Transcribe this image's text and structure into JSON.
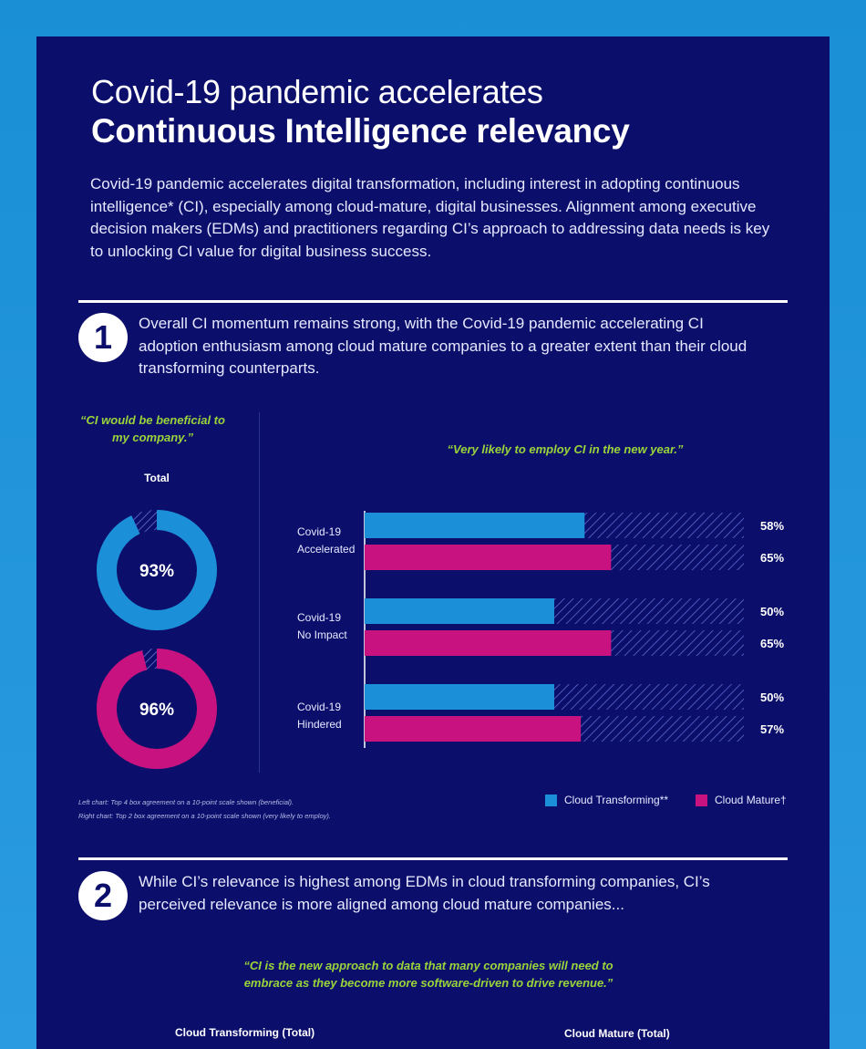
{
  "header": {
    "title_line1": "Covid-19 pandemic accelerates",
    "title_line2": "Continuous Intelligence relevancy",
    "intro": "Covid-19 pandemic accelerates digital transformation, including interest in adopting continuous intelligence* (CI), especially among cloud-mature, digital businesses.  Alignment among executive decision makers (EDMs) and practitioners regarding CI’s approach to addressing data needs is key to unlocking CI value for digital business success."
  },
  "section1": {
    "number": "1",
    "text": "Overall CI momentum remains strong, with the Covid-19 pandemic accelerating CI adoption enthusiasm among cloud mature companies to a greater extent than their cloud transforming counterparts.",
    "left_quote": "“CI would be beneficial to my company.”",
    "left_subtitle": "Total",
    "right_quote": "“Very likely to employ CI in the new year.”",
    "footnote_line1": "Left chart: Top 4 box agreement on a 10-point scale shown (beneficial).",
    "footnote_line2": "Right chart: Top 2 box agreement on a 10-point scale shown (very likely to employ).",
    "legend": {
      "cloud_transforming": "Cloud Transforming**",
      "cloud_mature": "Cloud Mature†"
    }
  },
  "section2": {
    "number": "2",
    "text": "While CI’s relevance is highest among EDMs in cloud transforming companies, CI’s perceived relevance is more aligned among cloud mature companies...",
    "quote": "“CI is the new approach to data that many companies will need to embrace as they become more software-driven to drive revenue.”",
    "col_left": "Cloud Transforming (Total)",
    "col_right": "Cloud Mature (Total)"
  },
  "colors": {
    "background_card": "#0b0f6b",
    "cloud_transforming": "#1b8fd8",
    "cloud_mature": "#c8127f",
    "quote_green": "#9ad43a"
  },
  "chart_data": [
    {
      "type": "pie",
      "title": "“CI would be beneficial to my company.”",
      "subtitle": "Total",
      "series": [
        {
          "name": "Cloud Transforming**",
          "value": 93,
          "label": "93%"
        },
        {
          "name": "Cloud Mature†",
          "value": 96,
          "label": "96%"
        }
      ]
    },
    {
      "type": "bar",
      "orientation": "horizontal",
      "title": "“Very likely to employ CI in the new year.”",
      "categories": [
        "Covid-19 Accelerated",
        "Covid-19 No Impact",
        "Covid-19 Hindered"
      ],
      "category_lines": [
        [
          "Covid-19",
          "Accelerated"
        ],
        [
          "Covid-19",
          "No Impact"
        ],
        [
          "Covid-19",
          "Hindered"
        ]
      ],
      "series": [
        {
          "name": "Cloud Transforming**",
          "values": [
            58,
            50,
            50
          ],
          "labels": [
            "58%",
            "50%",
            "50%"
          ]
        },
        {
          "name": "Cloud Mature†",
          "values": [
            65,
            65,
            57
          ],
          "labels": [
            "65%",
            "65%",
            "57%"
          ]
        }
      ],
      "xlim": [
        0,
        100
      ],
      "legend": "bottom-right"
    }
  ]
}
